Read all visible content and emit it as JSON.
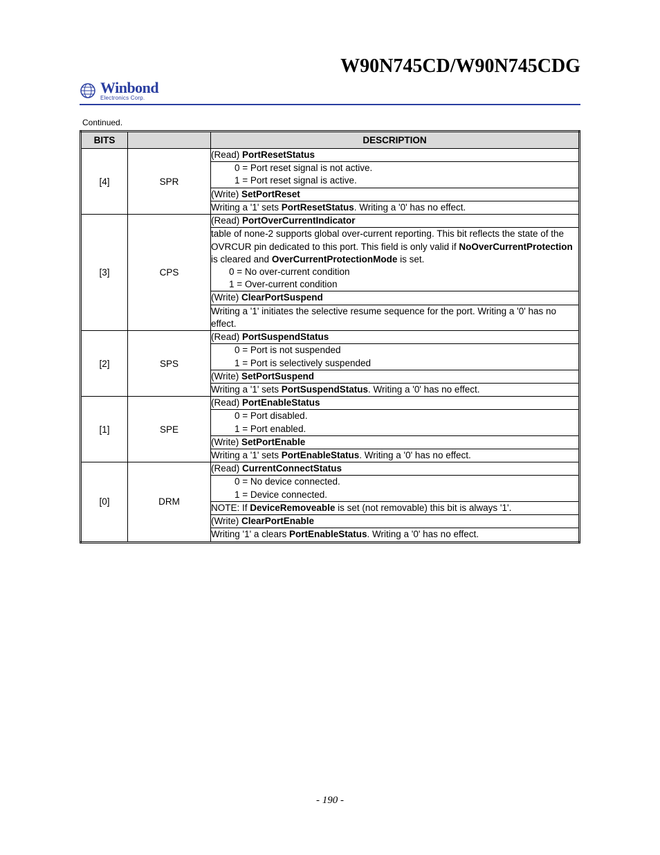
{
  "header": {
    "doc_title": "W90N745CD/W90N745CDG",
    "logo_name": "Winbond",
    "logo_sub": "Electronics Corp.",
    "logo_color": "#2a3ea0"
  },
  "continued": "Continued.",
  "table": {
    "headers": {
      "bits": "BITS",
      "name": "",
      "desc": "DESCRIPTION"
    },
    "rows": [
      {
        "bits": "[4]",
        "name": "SPR",
        "desc": [
          {
            "html": "(Read) <b>PortResetStatus</b>"
          },
          {
            "html": "0 = Port reset signal is not active.<br>1 = Port reset signal is active.",
            "indent": true
          },
          {
            "html": "(Write) <b>SetPortReset</b>"
          },
          {
            "html": "Writing a '1' sets <b>PortResetStatus</b>.  Writing a '0' has no effect."
          }
        ]
      },
      {
        "bits": "[3]",
        "name": "CPS",
        "desc": [
          {
            "html": "(Read) <b>PortOverCurrentIndicator</b>"
          },
          {
            "html": "table of none-2 supports global over-current reporting.  This bit reflects the state of the OVRCUR pin dedicated to this port.  This field is only valid if <b>NoOverCurrentProtection</b> is cleared and <b>OverCurrentProtectionMode</b> is set.<br><span style='padding-left:26px;display:inline-block'>0 = No over-current condition<br>1 = Over-current condition</span>",
            "justify": true
          },
          {
            "html": "(Write) <b>ClearPortSuspend</b>"
          },
          {
            "html": "Writing a '1' initiates the selective resume sequence for the port.  Writing a '0' has no effect.",
            "justify": true
          }
        ]
      },
      {
        "bits": "[2]",
        "name": "SPS",
        "desc": [
          {
            "html": "(Read) <b>PortSuspendStatus</b>"
          },
          {
            "html": "0 = Port is not suspended<br>1 = Port is selectively suspended",
            "indent": true
          },
          {
            "html": "(Write) <b>SetPortSuspend</b>"
          },
          {
            "html": "Writing a '1' sets <b>PortSuspendStatus</b>.  Writing a '0' has no effect."
          }
        ]
      },
      {
        "bits": "[1]",
        "name": "SPE",
        "desc": [
          {
            "html": "(Read) <b>PortEnableStatus</b>"
          },
          {
            "html": "0 = Port disabled.<br>1 = Port enabled.",
            "indent": true
          },
          {
            "html": "(Write) <b>SetPortEnable</b>"
          },
          {
            "html": "Writing a '1' sets <b>PortEnableStatus</b>.  Writing a '0' has no effect."
          }
        ]
      },
      {
        "bits": "[0]",
        "name": "DRM",
        "desc": [
          {
            "html": "(Read) <b>CurrentConnectStatus</b>"
          },
          {
            "html": "0 = No device connected.<br>1 = Device connected.",
            "indent": true
          },
          {
            "html": "NOTE:  If <b>DeviceRemoveable</b> is set (not removable) this bit is always '1'."
          },
          {
            "html": "(Write) <b>ClearPortEnable</b>"
          },
          {
            "html": "Writing '1' a clears <b>PortEnableStatus</b>.  Writing a '0' has no effect."
          }
        ]
      }
    ]
  },
  "page_number": "- 190 -"
}
